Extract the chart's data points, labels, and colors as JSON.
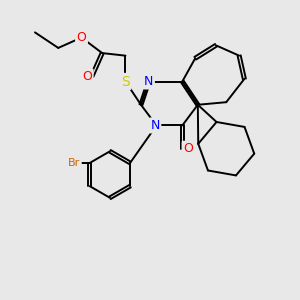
{
  "background_color": "#e8e8e8",
  "atom_colors": {
    "O": "#ff0000",
    "N": "#0000ff",
    "S": "#cccc00",
    "Br": "#cc6600",
    "C": "#1a8c1a",
    "black": "#000000"
  },
  "figsize": [
    3.0,
    3.0
  ],
  "dpi": 100
}
